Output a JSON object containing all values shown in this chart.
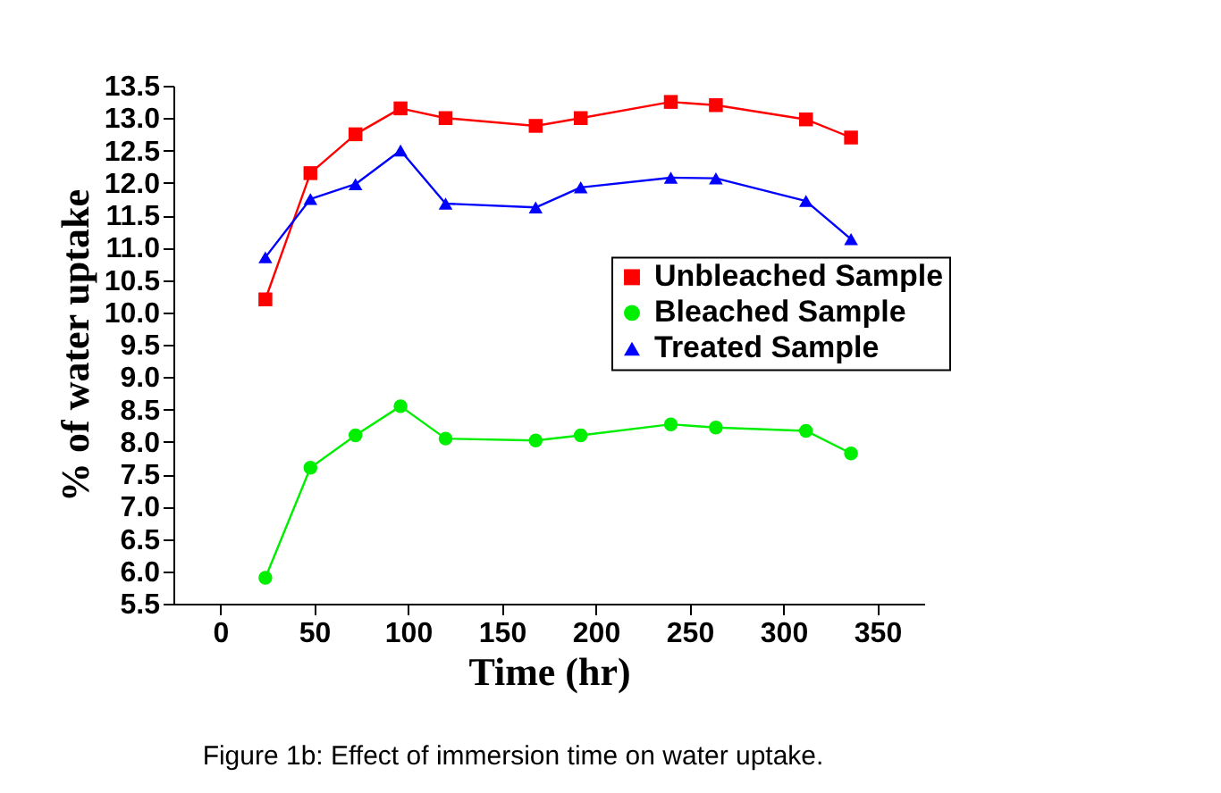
{
  "chart_data": {
    "type": "line",
    "xlabel": "Time (hr)",
    "ylabel": "% of water  uptake",
    "x": [
      24,
      48,
      72,
      96,
      120,
      168,
      192,
      240,
      264,
      312,
      336
    ],
    "series": [
      {
        "name": "Unbleached Sample",
        "color": "#ff0000",
        "marker": "square",
        "values": [
          10.2,
          12.15,
          12.75,
          13.15,
          13.0,
          12.88,
          13.0,
          13.25,
          13.2,
          12.98,
          12.7
        ]
      },
      {
        "name": "Bleached Sample",
        "color": "#00ee00",
        "marker": "circle",
        "values": [
          5.9,
          7.6,
          8.1,
          8.55,
          8.05,
          8.02,
          8.1,
          8.27,
          8.22,
          8.17,
          7.82
        ]
      },
      {
        "name": "Treated Sample",
        "color": "#0000ff",
        "marker": "triangle",
        "values": [
          10.85,
          11.75,
          11.98,
          12.5,
          11.68,
          11.62,
          11.93,
          12.08,
          12.07,
          11.72,
          11.13
        ]
      }
    ],
    "xlim": [
      -25,
      375
    ],
    "xticks": [
      0,
      50,
      100,
      150,
      200,
      250,
      300,
      350
    ],
    "ylim": [
      5.5,
      13.5
    ],
    "yticks": [
      {
        "value": 5.5,
        "label": "5.5"
      },
      {
        "value": 6,
        "label": "6.0"
      },
      {
        "value": 6.5,
        "label": "6.5"
      },
      {
        "value": 7,
        "label": "7.0"
      },
      {
        "value": 7.5,
        "label": "7.5"
      },
      {
        "value": 8,
        "label": "8.0"
      },
      {
        "value": 8.5,
        "label": "8.5"
      },
      {
        "value": 9,
        "label": "9.0"
      },
      {
        "value": 9.5,
        "label": "9.5"
      },
      {
        "value": 10,
        "label": "10.0"
      },
      {
        "value": 10.5,
        "label": "10.5"
      },
      {
        "value": 11,
        "label": "11.0"
      },
      {
        "value": 11.5,
        "label": "11.5"
      },
      {
        "value": 12,
        "label": "12.0"
      },
      {
        "value": 12.5,
        "label": "12.5"
      },
      {
        "value": 13,
        "label": "13.0"
      },
      {
        "value": 13.5,
        "label": "13.5"
      }
    ],
    "grid": false,
    "legend": "right",
    "line_style": "solid",
    "annotations": [
      "Figure 1b: Effect of immersion time on water uptake."
    ]
  }
}
